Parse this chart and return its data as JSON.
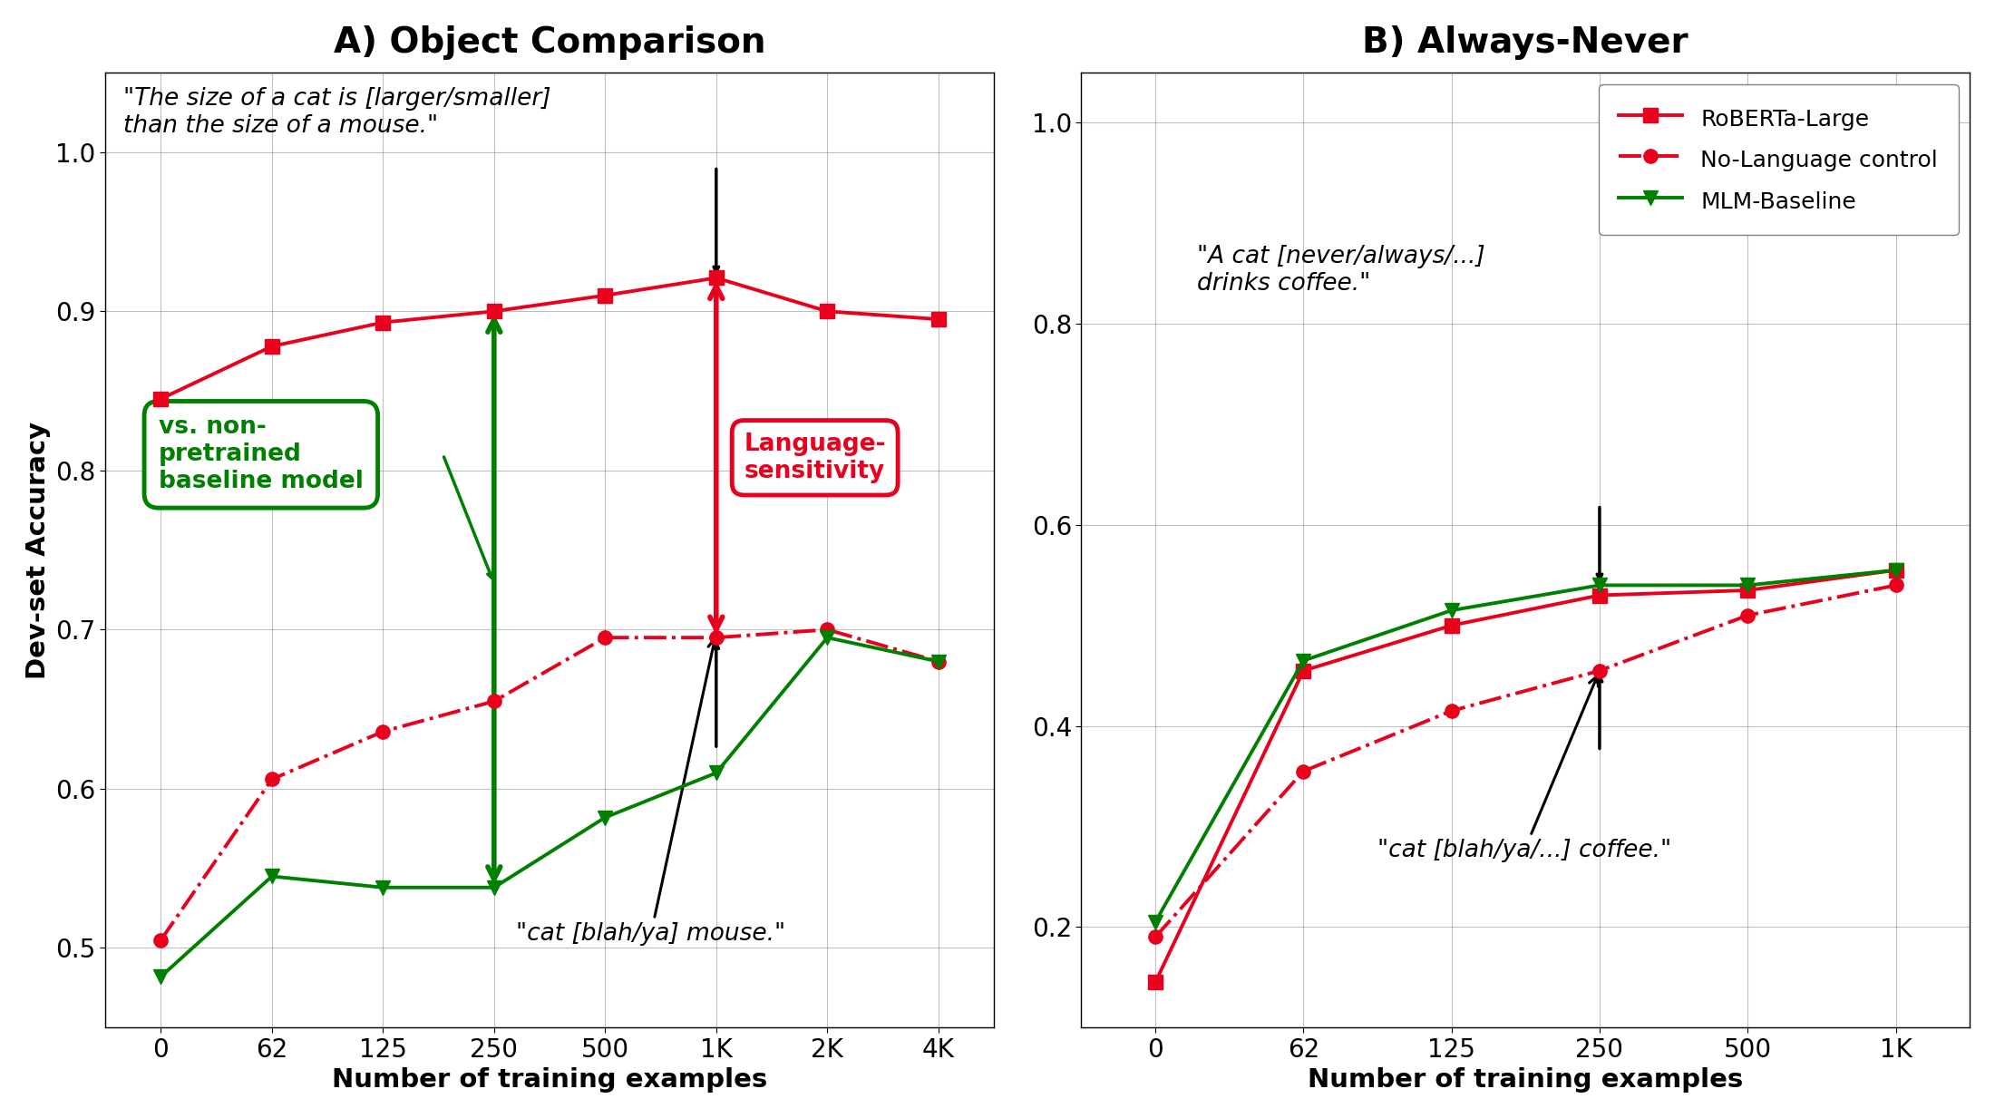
{
  "title_a": "A) Object Comparison",
  "title_b": "B) Always-Never",
  "ylabel": "Dev-set Accuracy",
  "xlabel": "Number of training examples",
  "a_xtick_labels": [
    "0",
    "62",
    "125",
    "250",
    "500",
    "1K",
    "2K",
    "4K"
  ],
  "a_x": [
    0,
    1,
    2,
    3,
    4,
    5,
    6,
    7
  ],
  "a_roberta": [
    0.845,
    0.878,
    0.893,
    0.9,
    0.91,
    0.921,
    0.9,
    0.895
  ],
  "a_nolang": [
    0.505,
    0.606,
    0.636,
    0.655,
    0.695,
    0.695,
    0.7,
    0.68
  ],
  "a_mlm": [
    0.482,
    0.545,
    0.538,
    0.538,
    0.582,
    0.61,
    0.695,
    0.68
  ],
  "b_xtick_labels": [
    "0",
    "62",
    "125",
    "250",
    "500",
    "1K"
  ],
  "b_x": [
    0,
    1,
    2,
    3,
    4,
    5
  ],
  "b_roberta": [
    0.145,
    0.455,
    0.5,
    0.53,
    0.535,
    0.555
  ],
  "b_nolang": [
    0.19,
    0.355,
    0.415,
    0.455,
    0.51,
    0.54
  ],
  "b_mlm": [
    0.205,
    0.465,
    0.515,
    0.54,
    0.54,
    0.555
  ],
  "color_roberta": "#e8001c",
  "color_nolang": "#e8001c",
  "color_mlm": "#008000",
  "ylim_a": [
    0.45,
    1.05
  ],
  "ylim_b": [
    0.1,
    1.05
  ],
  "yticks_a": [
    0.5,
    0.6,
    0.7,
    0.8,
    0.9,
    1.0
  ],
  "yticks_b": [
    0.2,
    0.4,
    0.6,
    0.8,
    1.0
  ],
  "label_roberta": "RoBERTa-Large",
  "label_nolang": "No-Language control",
  "label_mlm": "MLM-Baseline",
  "annotation_a_quote": "\"The size of a cat is [larger/smaller]\nthan the size of a mouse.\"",
  "annotation_a_blah": "\"cat [blah/ya] mouse.\"",
  "annotation_a_box": "vs. non-\npretrained\nbaseline model",
  "annotation_a_lang": "Language-\nsensitivity",
  "annotation_b_quote": "\"A cat [never/always/...]\ndrinks coffee.\"",
  "annotation_b_blah": "\"cat [blah/ya/...] coffee.\""
}
